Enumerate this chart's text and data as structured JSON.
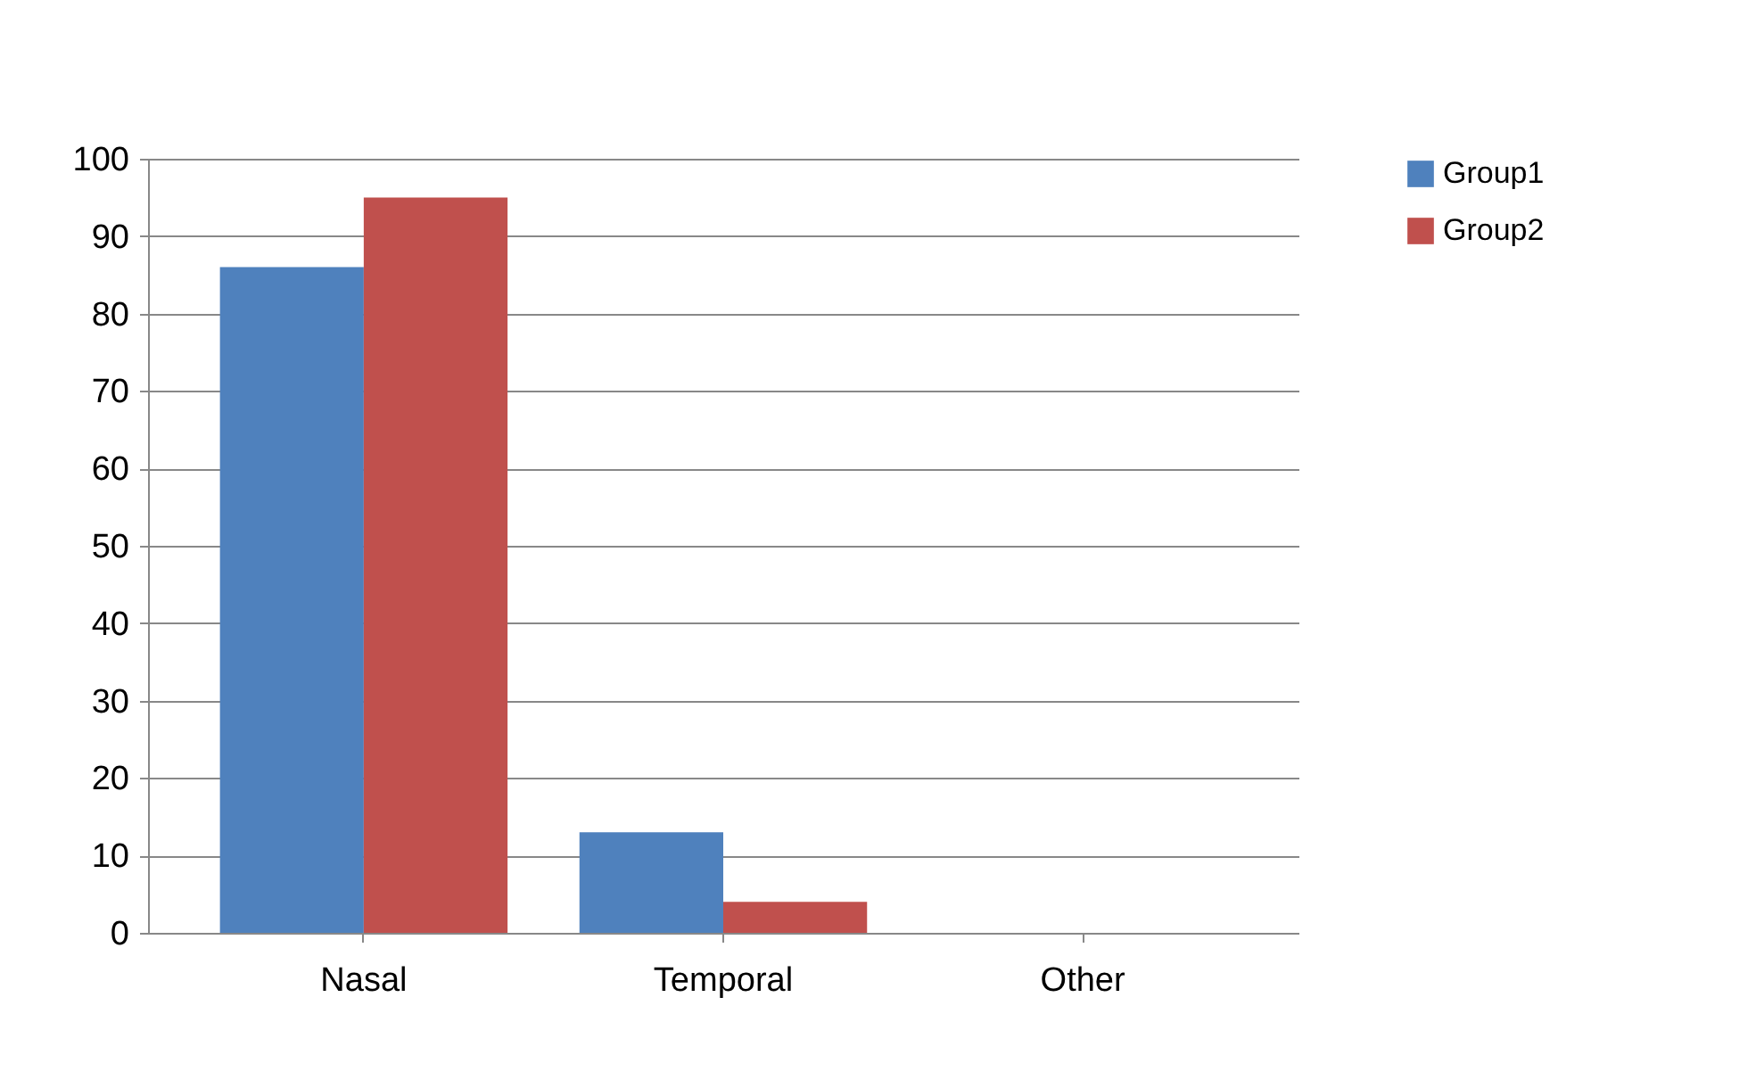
{
  "chart_data": {
    "type": "bar",
    "categories": [
      "Nasal",
      "Temporal",
      "Other"
    ],
    "series": [
      {
        "name": "Group1",
        "color": "#4f81bd",
        "values": [
          86,
          13,
          0
        ]
      },
      {
        "name": "Group2",
        "color": "#c0504d",
        "values": [
          95,
          4,
          0
        ]
      }
    ],
    "ylim": [
      0,
      100
    ],
    "yticks": [
      0,
      10,
      20,
      30,
      40,
      50,
      60,
      70,
      80,
      90,
      100
    ],
    "grid": "y",
    "legend": "right"
  }
}
